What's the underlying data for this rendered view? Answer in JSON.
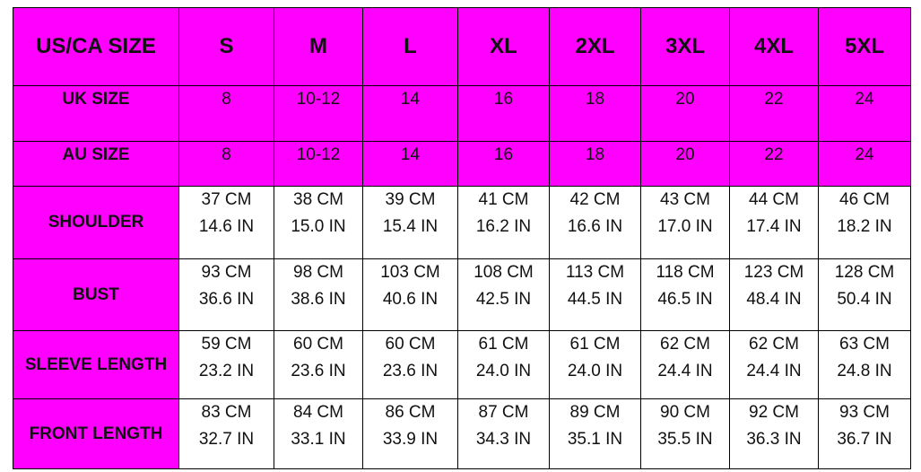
{
  "colors": {
    "header_bg": "#ff00ff",
    "cell_bg": "#ffffff",
    "border": "#000000"
  },
  "table": {
    "header": {
      "label": "US/CA SIZE",
      "sizes": [
        "S",
        "M",
        "L",
        "XL",
        "2XL",
        "3XL",
        "4XL",
        "5XL"
      ]
    },
    "uk": {
      "label": "UK SIZE",
      "values": [
        "8",
        "10-12",
        "14",
        "16",
        "18",
        "20",
        "22",
        "24"
      ]
    },
    "au": {
      "label": "AU SIZE",
      "values": [
        "8",
        "10-12",
        "14",
        "16",
        "18",
        "20",
        "22",
        "24"
      ]
    },
    "rows": [
      {
        "label": "SHOULDER",
        "cm": [
          "37 CM",
          "38 CM",
          "39 CM",
          "41 CM",
          "42 CM",
          "43 CM",
          "44 CM",
          "46 CM"
        ],
        "in": [
          "14.6 IN",
          "15.0 IN",
          "15.4 IN",
          "16.2 IN",
          "16.6 IN",
          "17.0 IN",
          "17.4 IN",
          "18.2 IN"
        ]
      },
      {
        "label": "BUST",
        "cm": [
          "93 CM",
          "98 CM",
          "103 CM",
          "108 CM",
          "113 CM",
          "118 CM",
          "123 CM",
          "128 CM"
        ],
        "in": [
          "36.6 IN",
          "38.6 IN",
          "40.6 IN",
          "42.5 IN",
          "44.5 IN",
          "46.5 IN",
          "48.4 IN",
          "50.4 IN"
        ]
      },
      {
        "label": "SLEEVE LENGTH",
        "cm": [
          "59 CM",
          "60 CM",
          "60 CM",
          "61 CM",
          "61 CM",
          "62 CM",
          "62 CM",
          "63 CM"
        ],
        "in": [
          "23.2 IN",
          "23.6 IN",
          "23.6 IN",
          "24.0 IN",
          "24.0 IN",
          "24.4 IN",
          "24.4 IN",
          "24.8 IN"
        ]
      },
      {
        "label": "FRONT LENGTH",
        "cm": [
          "83 CM",
          "84 CM",
          "86 CM",
          "87 CM",
          "89 CM",
          "90 CM",
          "92 CM",
          "93 CM"
        ],
        "in": [
          "32.7 IN",
          "33.1 IN",
          "33.9 IN",
          "34.3 IN",
          "35.1 IN",
          "35.5 IN",
          "36.3 IN",
          "36.7 IN"
        ]
      }
    ]
  }
}
